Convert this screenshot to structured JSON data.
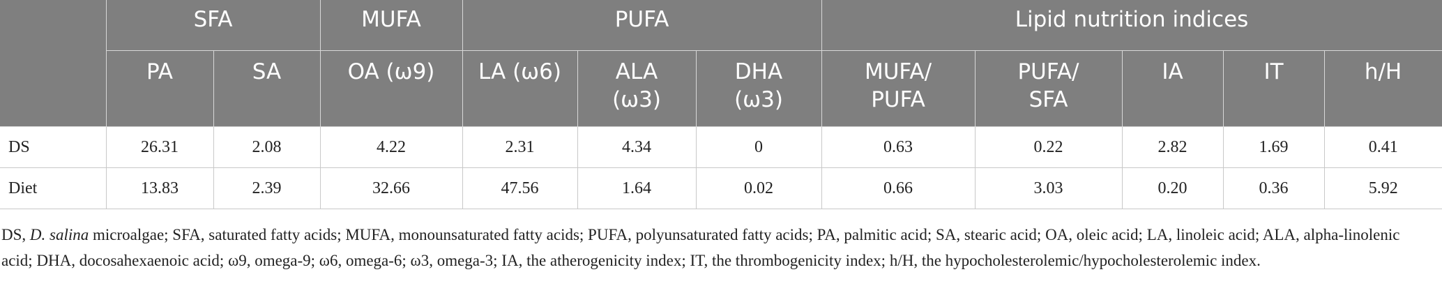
{
  "table": {
    "groups": [
      {
        "name": "SFA",
        "columns": [
          [
            "PA"
          ],
          [
            "SA"
          ]
        ]
      },
      {
        "name": "MUFA",
        "columns": [
          [
            "OA (ω9)"
          ]
        ]
      },
      {
        "name": "PUFA",
        "columns": [
          [
            "LA (ω6)"
          ],
          [
            "ALA",
            "(ω3)"
          ],
          [
            "DHA",
            "(ω3)"
          ]
        ]
      },
      {
        "name": "Lipid nutrition indices",
        "columns": [
          [
            "MUFA/",
            "PUFA"
          ],
          [
            "PUFA/",
            "SFA"
          ],
          [
            "IA"
          ],
          [
            "IT"
          ],
          [
            "h/H"
          ]
        ]
      }
    ],
    "rows": [
      [
        "DS",
        "26.31",
        "2.08",
        "4.22",
        "2.31",
        "4.34",
        "0",
        "0.63",
        "0.22",
        "2.82",
        "1.69",
        "0.41"
      ],
      [
        "Diet",
        "13.83",
        "2.39",
        "32.66",
        "47.56",
        "1.64",
        "0.02",
        "0.66",
        "3.03",
        "0.20",
        "0.36",
        "5.92"
      ]
    ]
  },
  "footnote": {
    "lead": "DS, ",
    "italic": "D. salina",
    "rest": " microalgae; SFA, saturated fatty acids; MUFA, monounsaturated fatty acids; PUFA, polyunsaturated fatty acids; PA, palmitic acid; SA, stearic acid; OA, oleic acid; LA, linoleic acid; ALA, alpha-linolenic acid; DHA, docosahexaenoic acid; ω9, omega-9; ω6, omega-6; ω3, omega-3; IA, the atherogenicity index; IT, the thrombogenicity index; h/H, the hypocholesterolemic/hypocholesterolemic index."
  }
}
